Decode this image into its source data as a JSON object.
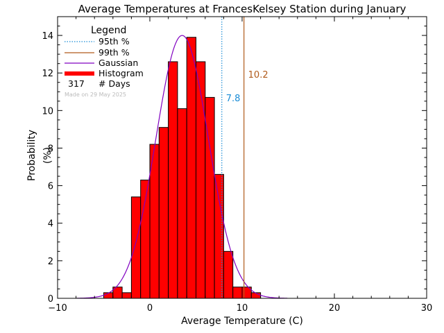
{
  "chart_data": {
    "type": "bar",
    "title": "Average Temperatures at FrancesKelsey Station during January",
    "xlabel": "Average Temperature (C)",
    "ylabel_line1": "Probability",
    "ylabel_line2": "(%)",
    "xlim": [
      -10,
      30
    ],
    "ylim": [
      0,
      15
    ],
    "xticks": [
      -10,
      0,
      10,
      20,
      30
    ],
    "xtick_labels": [
      "−10",
      "0",
      "10",
      "20",
      "30"
    ],
    "yticks": [
      0,
      2,
      4,
      6,
      8,
      10,
      12,
      14
    ],
    "grid": false,
    "legend_position": "top-left",
    "bin_width": 1,
    "histogram": {
      "name": "Histogram",
      "color": "#ff0000",
      "bins_left_edge": [
        -5,
        -4,
        -3,
        -2,
        -1,
        0,
        1,
        2,
        3,
        4,
        5,
        6,
        7,
        8,
        9,
        10,
        11
      ],
      "values": [
        0.3,
        0.6,
        0.3,
        5.4,
        6.3,
        8.2,
        9.1,
        12.6,
        10.1,
        13.9,
        12.6,
        10.7,
        6.6,
        2.5,
        0.6,
        0.6,
        0.3
      ]
    },
    "gaussian": {
      "name": "Gaussian",
      "color": "#8000c0",
      "mean": 3.5,
      "sigma": 2.85,
      "peak": 14.0
    },
    "percentiles": [
      {
        "name": "95th %",
        "value": 7.8,
        "label": "7.8",
        "color": "#1a8cd6",
        "style": "dotted"
      },
      {
        "name": "99th %",
        "value": 10.2,
        "label": "10.2",
        "color": "#b05a1a",
        "style": "solid"
      }
    ],
    "legend": {
      "title": "Legend",
      "items": [
        "95th %",
        "99th %",
        "Gaussian",
        "Histogram"
      ],
      "days_count": "317",
      "days_label": "# Days",
      "made_on": "Made on 29 May 2025"
    }
  }
}
